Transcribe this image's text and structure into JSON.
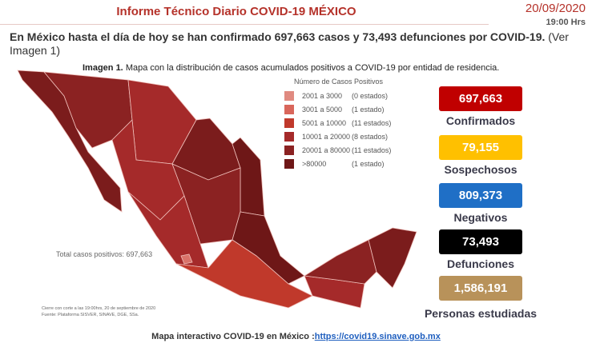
{
  "header": {
    "title": "Informe Técnico Diario COVID-19 MÉXICO",
    "date": "20/09/2020",
    "time": "19:00 Hrs"
  },
  "intro": {
    "lead": "En México hasta el día de hoy se han confirmado",
    "bold": "697,663 casos y 73,493 defunciones por COVID-19.",
    "tail": "(Ver Imagen 1)"
  },
  "caption": {
    "label": "Imagen 1.",
    "text": "Mapa con la distribución de casos acumulados positivos a COVID-19 por entidad de residencia."
  },
  "legend": {
    "title": "Número de Casos Positivos",
    "items": [
      {
        "range": "2001 a 3000",
        "count": "(0 estados)",
        "color": "#e08a80"
      },
      {
        "range": "3001 a 5000",
        "count": "(1 estado)",
        "color": "#d9665b"
      },
      {
        "range": "5001 a 10000",
        "count": "(11 estados)",
        "color": "#c0392b"
      },
      {
        "range": "10001 a 20000",
        "count": "(8 estados)",
        "color": "#a52a2a"
      },
      {
        "range": "20001 a 80000",
        "count": "(11 estados)",
        "color": "#8b2222"
      },
      {
        "range": ">80000",
        "count": "(1 estado)",
        "color": "#6e1717"
      }
    ]
  },
  "map_total": "Total casos positivos: 697,663",
  "footnote": [
    "Cierre con corte a las 19:00hrs, 20 de septiembre de 2020",
    "Fuente: Plataforma SISVER, SINAVE, DGE, SSa."
  ],
  "stats": [
    {
      "value": "697,663",
      "label": "Confirmados",
      "color": "#c00000"
    },
    {
      "value": "79,155",
      "label": "Sospechosos",
      "color": "#ffc000"
    },
    {
      "value": "809,373",
      "label": "Negativos",
      "color": "#1f6fc6"
    },
    {
      "value": "73,493",
      "label": "Defunciones",
      "color": "#000000"
    },
    {
      "value": "1,586,191",
      "label": "Personas estudiadas",
      "color": "#b8925a"
    }
  ],
  "footer": {
    "text": "Mapa interactivo COVID-19 en México :",
    "link": "https://covid19.sinave.gob.mx"
  }
}
